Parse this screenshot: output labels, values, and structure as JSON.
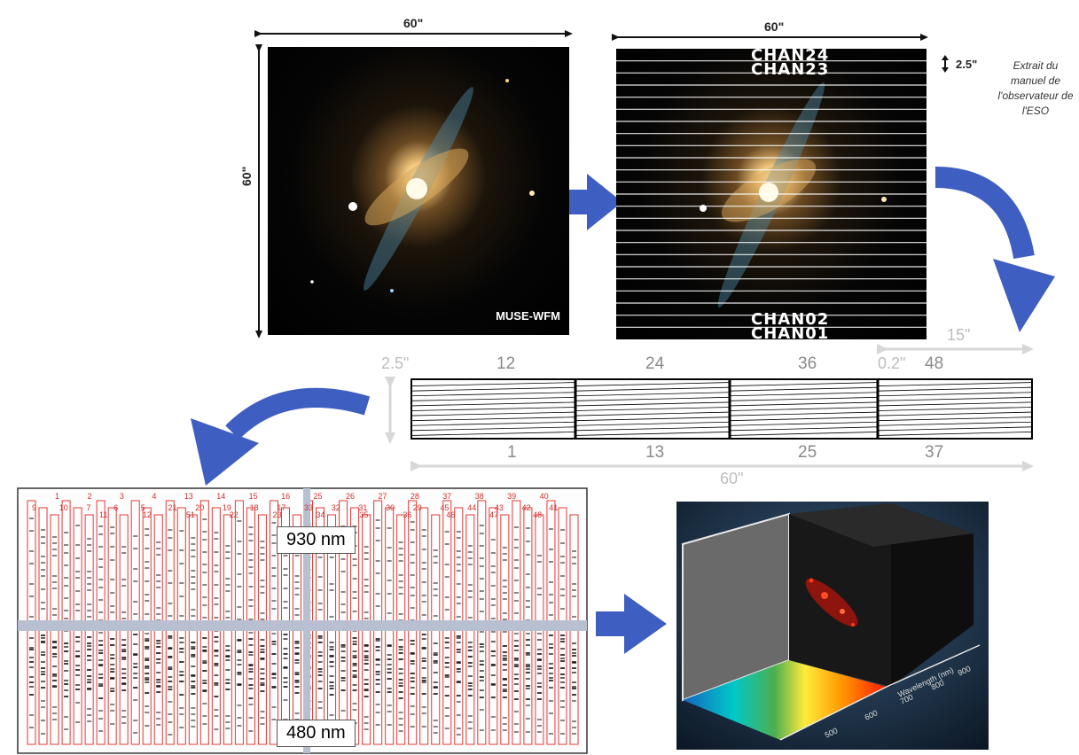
{
  "top_left_panel": {
    "width_label": "60\"",
    "height_label": "60\"",
    "instrument_label": "MUSE-WFM"
  },
  "top_right_panel": {
    "width_label": "60\"",
    "slice_label": "2.5\"",
    "channels_top": [
      "CHAN24",
      "CHAN23"
    ],
    "channels_bottom": [
      "CHAN02",
      "CHAN01"
    ]
  },
  "note": {
    "lines": [
      "Extrait du",
      "manuel de",
      "l'observateur de",
      "l'ESO"
    ]
  },
  "slicer": {
    "width_label": "15\"",
    "height_label": "2.5\"",
    "step_label": "0.2\"",
    "top_numbers": [
      "12",
      "24",
      "36",
      "48"
    ],
    "bottom_numbers": [
      "1",
      "13",
      "25",
      "37"
    ],
    "total_width_label": "60\""
  },
  "detector": {
    "top_wavelength": "930 nm",
    "bottom_wavelength": "480 nm",
    "row1": [
      "1",
      "2",
      "3",
      "4",
      "13",
      "14",
      "15",
      "16",
      "25",
      "26",
      "27",
      "28",
      "37",
      "38",
      "39",
      "40"
    ],
    "row2": [
      "9",
      "10",
      "7",
      "6",
      "5",
      "21",
      "20",
      "19",
      "18",
      "17",
      "33",
      "32",
      "31",
      "30",
      "29",
      "45",
      "44",
      "43",
      "42",
      "41"
    ],
    "row3": [
      "11",
      "12",
      "51",
      "22",
      "23",
      "34",
      "35",
      "36",
      "46",
      "47",
      "48"
    ]
  },
  "cube": {
    "axis_label": "Wavelength (nm)",
    "ticks": [
      "500",
      "600",
      "700",
      "800",
      "900"
    ]
  }
}
